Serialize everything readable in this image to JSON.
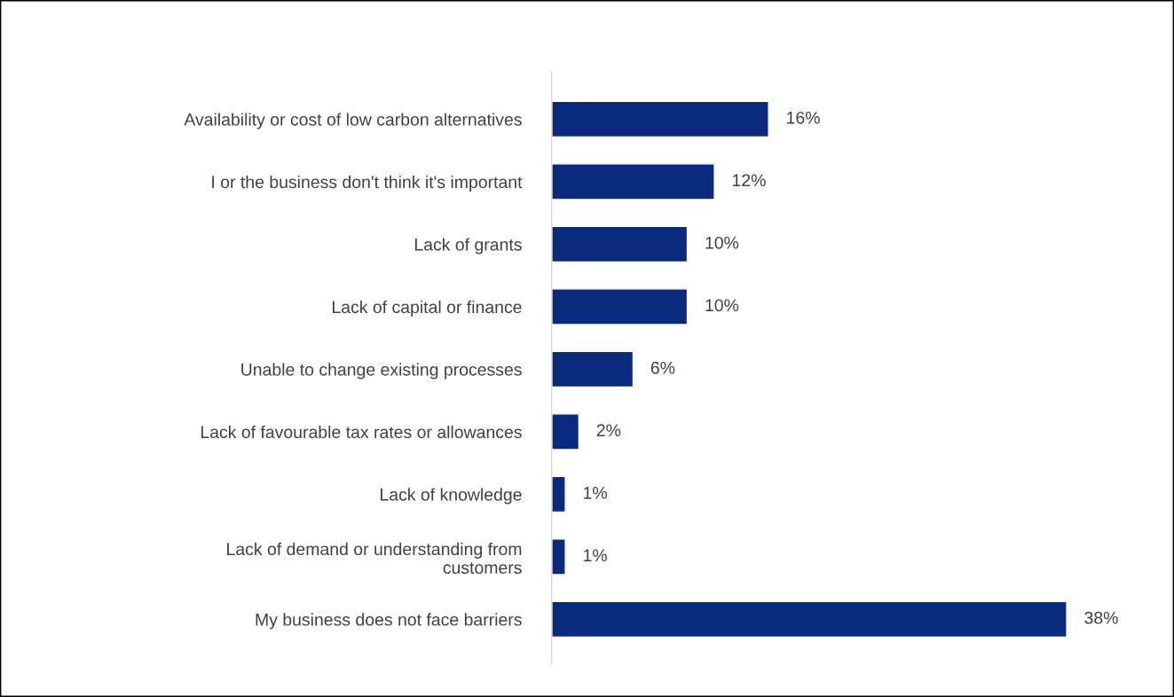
{
  "chart_data": {
    "type": "bar",
    "orientation": "horizontal",
    "categories": [
      "Availability or cost of low carbon alternatives",
      "I or the business don't think it's important",
      "Lack of grants",
      "Lack of capital or finance",
      "Unable to change existing processes",
      "Lack of favourable tax rates or allowances",
      "Lack of knowledge",
      "Lack of demand or understanding from\ncustomers",
      "My business does not face barriers"
    ],
    "values": [
      16,
      12,
      10,
      10,
      6,
      2,
      1,
      1,
      38
    ],
    "value_labels": [
      "16%",
      "12%",
      "10%",
      "10%",
      "6%",
      "2%",
      "1%",
      "1%",
      "38%"
    ],
    "color": "#0a2a80",
    "grid": false,
    "legend": false
  }
}
